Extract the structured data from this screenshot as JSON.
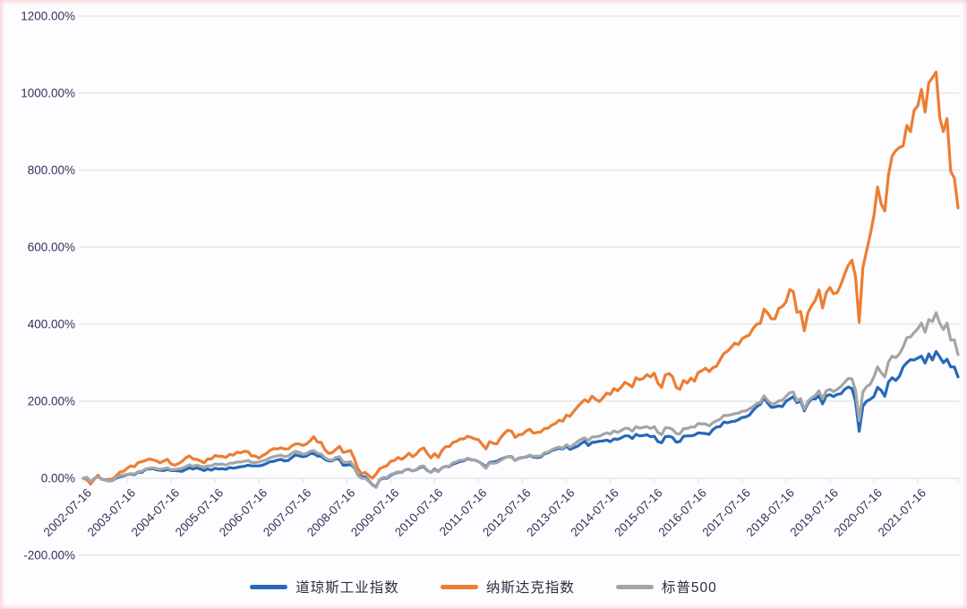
{
  "chart_data": {
    "type": "line",
    "title": "",
    "xlabel": "",
    "ylabel": "",
    "y_axis": {
      "min": -200,
      "max": 1200,
      "step": 200,
      "unit": "%"
    },
    "grid": true,
    "legend_position": "bottom",
    "x_unit": "monthly points starting 2002-07-16",
    "y_tick_labels": [
      "1200.00%",
      "1000.00%",
      "800.00%",
      "600.00%",
      "400.00%",
      "200.00%",
      "0.00%",
      "-200.00%"
    ],
    "x_tick_labels": [
      "2002-07-16",
      "2003-07-16",
      "2004-07-16",
      "2005-07-16",
      "2006-07-16",
      "2007-07-16",
      "2008-07-16",
      "2009-07-16",
      "2010-07-16",
      "2011-07-16",
      "2012-07-16",
      "2013-07-16",
      "2014-07-16",
      "2015-07-16",
      "2016-07-16",
      "2017-07-16",
      "2018-07-16",
      "2019-07-16",
      "2020-07-16",
      "2021-07-16"
    ],
    "colors": {
      "gridline": "#dfe2e8",
      "axis_text": "#34315a"
    },
    "series": [
      {
        "id": "dow-jones",
        "name": "道琼斯工业指数",
        "color": "#2569B8",
        "values": [
          0,
          2,
          -10,
          -1,
          5,
          -2,
          -5,
          -7,
          -6,
          0,
          4,
          6,
          9,
          11,
          9,
          16,
          15,
          23,
          24,
          25,
          22,
          21,
          20,
          23,
          20,
          20,
          19,
          18,
          23,
          27,
          24,
          27,
          24,
          20,
          24,
          21,
          26,
          24,
          25,
          23,
          28,
          26,
          28,
          30,
          31,
          34,
          32,
          32,
          32,
          34,
          38,
          43,
          44,
          47,
          49,
          45,
          46,
          54,
          61,
          58,
          56,
          58,
          64,
          64,
          58,
          57,
          49,
          45,
          45,
          51,
          49,
          34,
          34,
          36,
          28,
          10,
          4,
          4,
          -6,
          -17,
          -22,
          -4,
          0,
          0,
          8,
          12,
          15,
          15,
          22,
          23,
          19,
          22,
          28,
          30,
          20,
          15,
          24,
          18,
          27,
          31,
          30,
          37,
          40,
          44,
          45,
          51,
          48,
          47,
          43,
          37,
          29,
          41,
          42,
          44,
          49,
          53,
          56,
          56,
          46,
          52,
          54,
          55,
          59,
          55,
          54,
          55,
          64,
          66,
          72,
          75,
          78,
          76,
          83,
          75,
          79,
          83,
          90,
          96,
          85,
          93,
          94,
          96,
          97,
          99,
          95,
          102,
          101,
          105,
          110,
          110,
          103,
          114,
          110,
          111,
          113,
          108,
          109,
          95,
          92,
          108,
          109,
          106,
          94,
          95,
          109,
          110,
          110,
          112,
          118,
          117,
          116,
          114,
          126,
          133,
          134,
          146,
          144,
          147,
          148,
          152,
          158,
          159,
          164,
          176,
          186,
          192,
          209,
          195,
          184,
          185,
          188,
          186,
          200,
          206,
          212,
          196,
          201,
          175,
          195,
          206,
          206,
          214,
          193,
          214,
          217,
          212,
          218,
          219,
          231,
          237,
          233,
          200,
          122,
          187,
          200,
          205,
          212,
          236,
          228,
          213,
          250,
          261,
          254,
          265,
          289,
          300,
          308,
          307,
          312,
          317,
          299,
          323,
          307,
          329,
          315,
          300,
          309,
          289,
          289,
          263
        ]
      },
      {
        "id": "nasdaq",
        "name": "纳斯达克指数",
        "color": "#ED7D31",
        "values": [
          0,
          -4,
          -15,
          -3,
          8,
          -3,
          -4,
          -3,
          -2,
          6,
          16,
          18,
          26,
          32,
          30,
          41,
          43,
          46,
          50,
          48,
          45,
          40,
          45,
          49,
          37,
          34,
          38,
          44,
          53,
          58,
          50,
          49,
          45,
          40,
          50,
          50,
          59,
          57,
          57,
          54,
          62,
          60,
          68,
          66,
          70,
          69,
          58,
          58,
          52,
          59,
          64,
          72,
          77,
          76,
          79,
          76,
          76,
          84,
          89,
          89,
          85,
          89,
          97,
          108,
          94,
          93,
          74,
          65,
          66,
          75,
          83,
          67,
          69,
          72,
          52,
          25,
          12,
          15,
          7,
          0,
          11,
          25,
          29,
          33,
          44,
          46,
          54,
          49,
          56,
          65,
          56,
          63,
          74,
          79,
          64,
          53,
          64,
          54,
          72,
          82,
          82,
          93,
          96,
          102,
          102,
          109,
          106,
          102,
          100,
          88,
          76,
          95,
          91,
          89,
          105,
          116,
          125,
          122,
          106,
          113,
          114,
          123,
          127,
          117,
          119,
          120,
          129,
          130,
          138,
          142,
          151,
          148,
          164,
          161,
          174,
          185,
          195,
          204,
          198,
          213,
          205,
          199,
          209,
          221,
          218,
          233,
          227,
          237,
          249,
          244,
          237,
          261,
          256,
          259,
          269,
          263,
          273,
          247,
          236,
          268,
          272,
          264,
          236,
          231,
          254,
          247,
          260,
          252,
          275,
          279,
          286,
          277,
          287,
          291,
          308,
          324,
          330,
          340,
          351,
          347,
          362,
          368,
          372,
          389,
          400,
          402,
          439,
          429,
          414,
          414,
          441,
          446,
          458,
          490,
          485,
          431,
          433,
          383,
          430,
          448,
          462,
          489,
          442,
          482,
          495,
          479,
          482,
          503,
          530,
          553,
          566,
          523,
          405,
          547,
          590,
          632,
          681,
          756,
          712,
          694,
          787,
          837,
          851,
          859,
          863,
          916,
          900,
          955,
          967,
          1010,
          951,
          1027,
          1040,
          1055,
          936,
          900,
          934,
          797,
          779,
          702
        ]
      },
      {
        "id": "sp500",
        "name": "标普500",
        "color": "#A5A5A5",
        "values": [
          0,
          2,
          -9,
          -2,
          4,
          -2,
          -5,
          -7,
          -6,
          2,
          7,
          8,
          10,
          12,
          11,
          17,
          18,
          24,
          26,
          27,
          25,
          23,
          25,
          27,
          22,
          23,
          24,
          26,
          30,
          35,
          31,
          34,
          31,
          29,
          32,
          32,
          37,
          36,
          37,
          34,
          39,
          39,
          42,
          42,
          44,
          46,
          41,
          41,
          42,
          45,
          48,
          53,
          56,
          58,
          60,
          56,
          58,
          65,
          70,
          67,
          62,
          64,
          70,
          72,
          65,
          63,
          53,
          48,
          47,
          54,
          56,
          42,
          41,
          43,
          30,
          8,
          0,
          0,
          -8,
          -18,
          -24,
          -3,
          2,
          2,
          10,
          13,
          17,
          15,
          22,
          24,
          19,
          23,
          30,
          32,
          21,
          15,
          22,
          17,
          27,
          31,
          31,
          40,
          43,
          47,
          47,
          52,
          49,
          47,
          44,
          35,
          26,
          39,
          39,
          40,
          46,
          52,
          56,
          55,
          46,
          51,
          53,
          56,
          60,
          57,
          57,
          58,
          66,
          68,
          74,
          78,
          81,
          78,
          87,
          81,
          87,
          95,
          101,
          105,
          98,
          107,
          108,
          109,
          114,
          118,
          115,
          123,
          119,
          124,
          130,
          129,
          122,
          134,
          130,
          132,
          134,
          129,
          134,
          119,
          113,
          131,
          131,
          127,
          116,
          115,
          129,
          129,
          133,
          133,
          142,
          141,
          141,
          136,
          144,
          149,
          153,
          163,
          163,
          165,
          168,
          169,
          174,
          175,
          180,
          186,
          194,
          197,
          214,
          202,
          193,
          194,
          201,
          202,
          213,
          222,
          224,
          201,
          207,
          179,
          200,
          209,
          215,
          227,
          206,
          227,
          231,
          225,
          231,
          238,
          249,
          259,
          258,
          228,
          150,
          224,
          238,
          244,
          263,
          289,
          274,
          263,
          302,
          317,
          313,
          323,
          341,
          365,
          367,
          378,
          388,
          403,
          379,
          412,
          407,
          430,
          402,
          386,
          403,
          359,
          359,
          321
        ]
      }
    ]
  },
  "legend": {
    "items": [
      {
        "label": "道琼斯工业指数"
      },
      {
        "label": "纳斯达克指数"
      },
      {
        "label": "标普500"
      }
    ]
  }
}
